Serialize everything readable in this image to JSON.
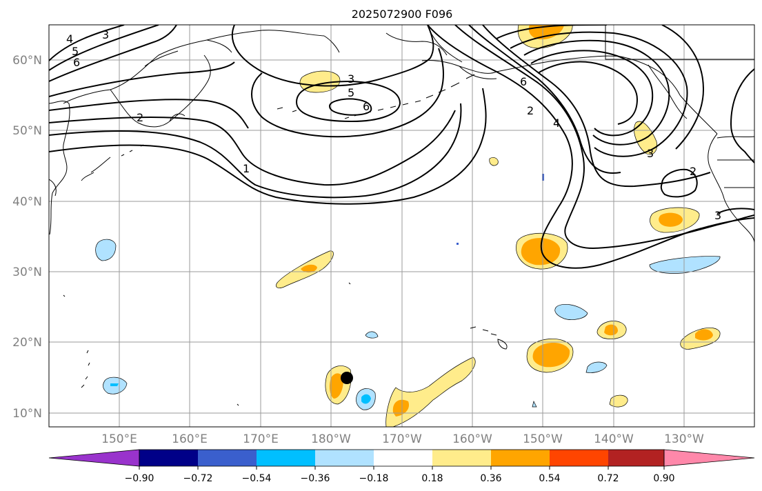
{
  "title": "2025072900 F096",
  "map": {
    "lat_labels": [
      "60°N",
      "50°N",
      "40°N",
      "30°N",
      "20°N",
      "10°N"
    ],
    "lon_labels": [
      "150°E",
      "160°E",
      "170°E",
      "180°W",
      "170°W",
      "160°W",
      "150°W",
      "140°W",
      "130°W"
    ]
  },
  "contour_labels": [
    "3",
    "4",
    "5",
    "6",
    "2",
    "1",
    "3",
    "5",
    "6",
    "6",
    "2",
    "4",
    "3",
    "2",
    "3"
  ],
  "colorbar": {
    "tick_labels": [
      "−0.90",
      "−0.72",
      "−0.54",
      "−0.36",
      "−0.18",
      "0.18",
      "0.36",
      "0.54",
      "0.72",
      "0.90"
    ],
    "colors": [
      "#9933cc",
      "#000088",
      "#3a5fcd",
      "#00bfff",
      "#b0e2ff",
      "#ffffff",
      "#ffec8b",
      "#ffa500",
      "#ff4500",
      "#b22222",
      "#ff88aa"
    ]
  },
  "fill_colors": {
    "light_yellow": "#ffec8b",
    "orange": "#ffa500",
    "light_blue": "#b0e2ff",
    "blue": "#00bfff"
  }
}
